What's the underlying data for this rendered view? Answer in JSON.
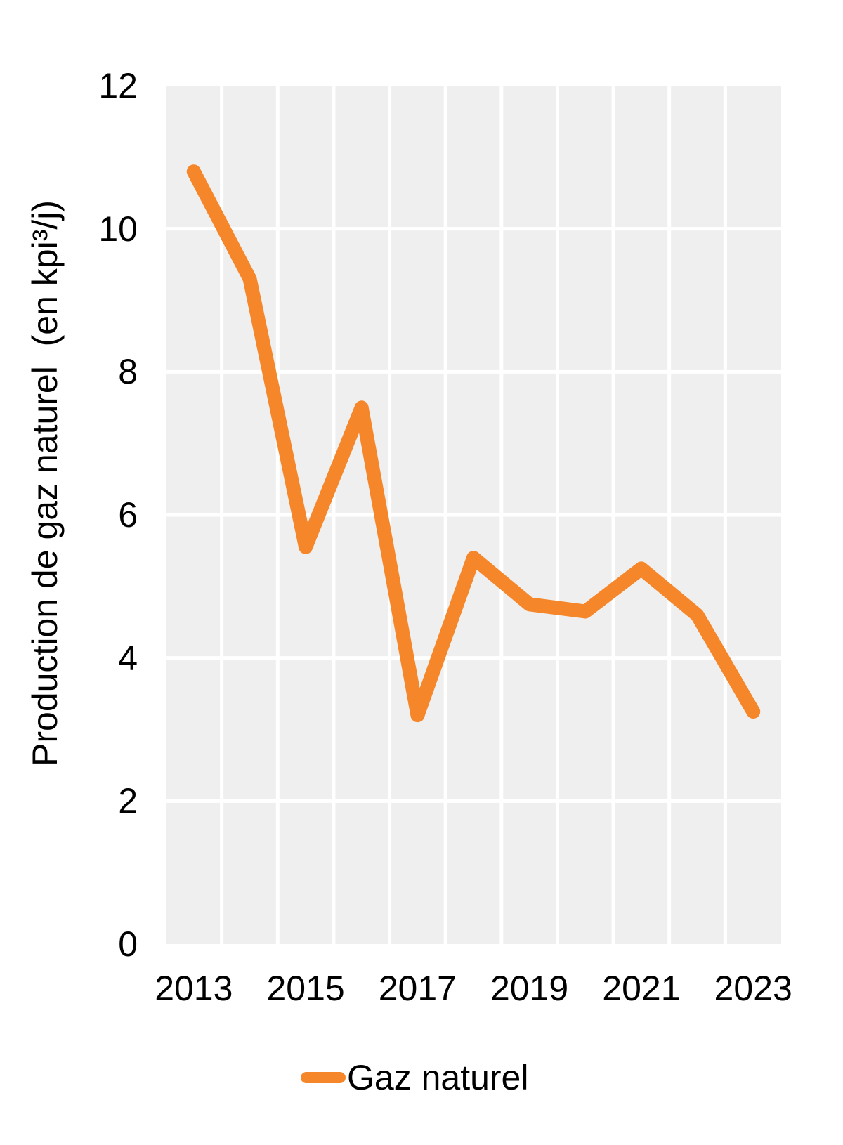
{
  "figure": {
    "background_color": "#ffffff",
    "text_color": "#000000"
  },
  "legend": {
    "label": "Gaz naturel",
    "position": "bottom-center"
  },
  "chart_data": {
    "type": "line",
    "x": [
      2013,
      2014,
      2015,
      2016,
      2017,
      2018,
      2019,
      2020,
      2021,
      2022,
      2023
    ],
    "series": [
      {
        "name": "Gaz naturel",
        "color": "#f6862a",
        "values": [
          10.8,
          9.3,
          5.55,
          7.5,
          3.2,
          5.4,
          4.75,
          4.65,
          5.25,
          4.6,
          3.25
        ]
      }
    ],
    "title": "",
    "xlabel": "",
    "ylabel": "Production de gaz naturel  (en kpi³/j)",
    "xlim": [
      2012.5,
      2023.5
    ],
    "ylim": [
      0,
      12
    ],
    "yticks": [
      0,
      2,
      4,
      6,
      8,
      10,
      12
    ],
    "xticks": [
      2013,
      2015,
      2017,
      2019,
      2021,
      2023
    ],
    "grid": true,
    "grid_color": "#ffffff",
    "grid_line_width": 5,
    "plot_bg": "#efefef",
    "line_width": 20,
    "legend_position": "bottom"
  }
}
